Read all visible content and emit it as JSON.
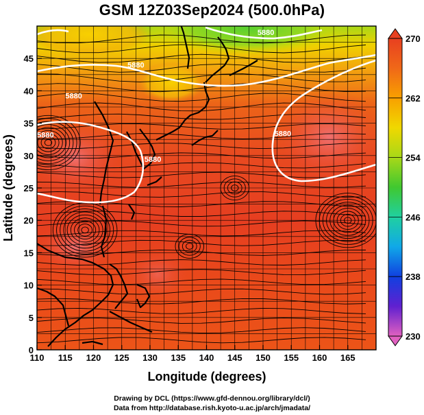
{
  "title": "GSM 12Z03Sep2024 (500.0hPa)",
  "footer": {
    "line1": "Drawing by DCL (https://www.gfd-dennou.org/library/dcl/)",
    "line2": "Data from http://database.rish.kyoto-u.ac.jp/arch/jmadata/"
  },
  "map": {
    "xlabel": "Longitude (degrees)",
    "ylabel": "Latitude  (degrees)",
    "x_ticks": [
      110,
      115,
      120,
      125,
      130,
      135,
      140,
      145,
      150,
      155,
      160,
      165
    ],
    "y_ticks": [
      0,
      5,
      10,
      15,
      20,
      25,
      30,
      35,
      40,
      45
    ],
    "lon_range": [
      110,
      170
    ],
    "lat_range": [
      0,
      50
    ],
    "contour_labels": [
      {
        "text": "5880",
        "lon": 127.5,
        "lat": 43.6
      },
      {
        "text": "5880",
        "lon": 150.5,
        "lat": 48.6
      },
      {
        "text": "5880",
        "lon": 116.5,
        "lat": 38.8
      },
      {
        "text": "5880",
        "lon": 130.5,
        "lat": 29
      },
      {
        "text": "5880",
        "lon": 153.5,
        "lat": 33
      },
      {
        "text": "5880",
        "lon": 111.5,
        "lat": 32.8
      }
    ]
  },
  "colorbar": {
    "labels": [
      "270",
      "262",
      "254",
      "246",
      "238",
      "230"
    ],
    "min": 230,
    "max": 270,
    "colors": [
      "#e060c0",
      "#6020d0",
      "#1040e0",
      "#10a8e8",
      "#20d0a0",
      "#40c830",
      "#a8d818",
      "#f0d800",
      "#f8a000",
      "#f06818",
      "#e84020"
    ]
  }
}
